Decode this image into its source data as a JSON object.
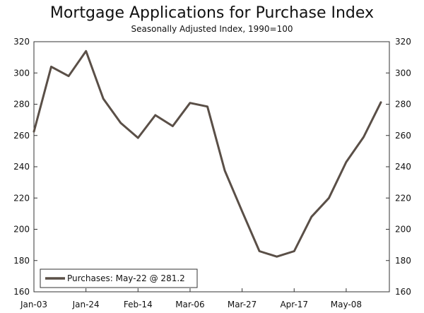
{
  "chart_data": {
    "type": "line",
    "title": "Mortgage Applications for Purchase Index",
    "subtitle": "Seasonally Adjusted Index, 1990=100",
    "xlabel": "",
    "ylabel": "",
    "ylim": [
      160,
      320
    ],
    "y_ticks": [
      160,
      180,
      200,
      220,
      240,
      260,
      280,
      300,
      320
    ],
    "x_tick_labels": [
      "Jan-03",
      "Jan-24",
      "Feb-14",
      "Mar-06",
      "Mar-27",
      "Apr-17",
      "May-08"
    ],
    "grid": false,
    "legend_position": "bottom-left",
    "line_color": "#5a4f47",
    "series": [
      {
        "name": "Purchases: May-22 @ 281.2",
        "values": [
          262.5,
          304,
          298,
          314,
          283.5,
          268,
          258.5,
          273,
          266,
          280.8,
          278.5,
          237.5,
          211.5,
          186,
          182.5,
          186,
          208,
          220,
          243,
          259,
          281.2
        ]
      }
    ]
  }
}
